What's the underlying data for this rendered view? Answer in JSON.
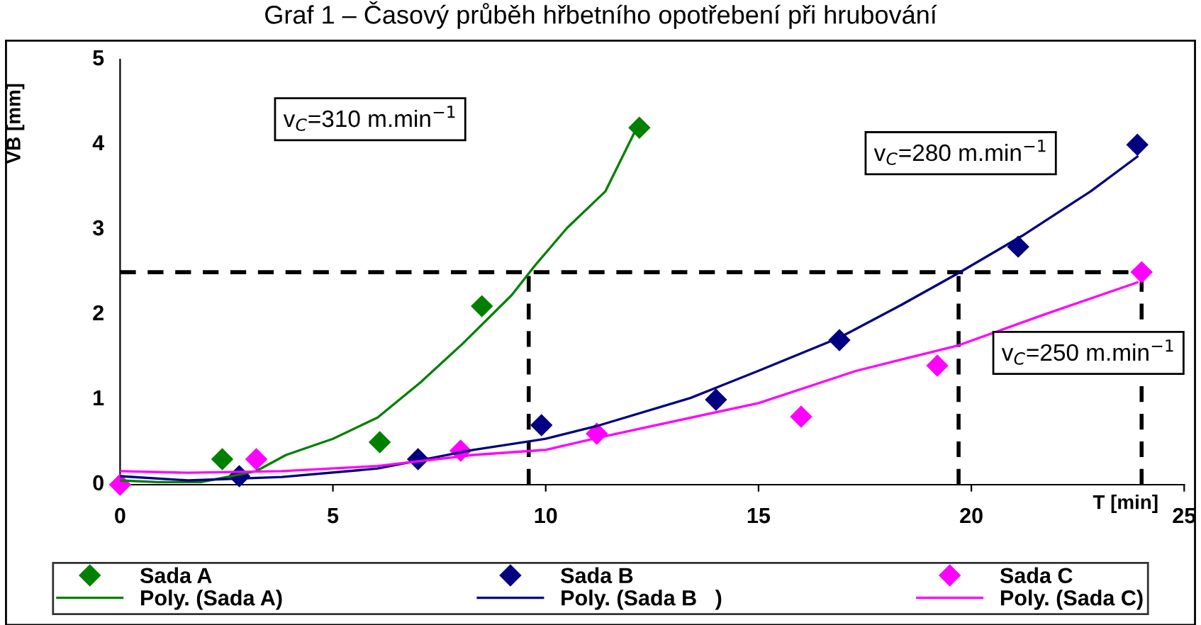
{
  "chart_data": {
    "type": "scatter",
    "title": "Graf 1 – Časový průběh hřbetního opotřebení při hrubování",
    "xlabel": "T [min]",
    "ylabel": "VB [mm]",
    "xlim": [
      0,
      25
    ],
    "xticks": [
      0,
      5,
      10,
      15,
      20,
      25
    ],
    "ylim": [
      0,
      5
    ],
    "yticks": [
      0,
      1,
      2,
      3,
      4,
      5
    ],
    "grid": false,
    "legend": "bottom",
    "marker": "diamond",
    "series": [
      {
        "name": "Sada A",
        "color": "#008000",
        "x": [
          2.4,
          6.1,
          8.5,
          12.2
        ],
        "values": [
          0.3,
          0.5,
          2.1,
          4.2
        ]
      },
      {
        "name": "Poly. (Sada A)",
        "type": "line",
        "marker": "none",
        "line_style": "solid",
        "color": "#008000",
        "x": [
          0,
          0.9,
          1.9,
          3.2,
          3.9,
          5,
          6.05,
          7.05,
          8.05,
          9.2,
          9.75,
          10.5,
          11.4,
          12.1
        ],
        "values": [
          0.05,
          0.03,
          0.03,
          0.16,
          0.35,
          0.54,
          0.79,
          1.2,
          1.66,
          2.23,
          2.58,
          3.02,
          3.45,
          4.16
        ]
      },
      {
        "name": "Sada B",
        "color": "#000080",
        "x": [
          2.8,
          7,
          9.9,
          14,
          16.9,
          21.1,
          23.9
        ],
        "values": [
          0.1,
          0.3,
          0.7,
          1,
          1.7,
          2.8,
          4
        ]
      },
      {
        "name": "Poly. (Sada B   )",
        "type": "line",
        "marker": "none",
        "line_style": "solid",
        "color": "#000080",
        "x": [
          0,
          1.6,
          3.8,
          6.05,
          8.3,
          10,
          11.2,
          13.4,
          15,
          16.9,
          18.3,
          19.7,
          21.2,
          22.8,
          23.9
        ],
        "values": [
          0.1,
          0.05,
          0.09,
          0.19,
          0.41,
          0.54,
          0.69,
          1.02,
          1.34,
          1.73,
          2.1,
          2.49,
          2.93,
          3.45,
          3.86
        ]
      },
      {
        "name": "Sada C",
        "color": "#ff00ff",
        "x": [
          0,
          3.2,
          8,
          11.2,
          16,
          19.2,
          24
        ],
        "values": [
          0,
          0.3,
          0.4,
          0.6,
          0.8,
          1.4,
          2.5
        ]
      },
      {
        "name": "Poly. (Sada C)",
        "type": "line",
        "marker": "none",
        "line_style": "solid",
        "color": "#ff00ff",
        "x": [
          0,
          1.6,
          3.8,
          6.05,
          8.3,
          10,
          11.2,
          15,
          17.3,
          19.7,
          21.7,
          23.9
        ],
        "values": [
          0.16,
          0.14,
          0.16,
          0.22,
          0.35,
          0.41,
          0.55,
          0.96,
          1.34,
          1.64,
          2.0,
          2.38
        ]
      }
    ],
    "ref_lines": [
      {
        "axis": "y",
        "value": 2.5,
        "color": "#000000",
        "line_style": "dashed"
      },
      {
        "axis": "x",
        "value": 9.6,
        "color": "#000000",
        "line_style": "dashed"
      },
      {
        "axis": "x",
        "value": 19.7,
        "color": "#000000",
        "line_style": "dashed"
      },
      {
        "axis": "x",
        "value": 24,
        "color": "#000000",
        "line_style": "dashed"
      }
    ],
    "annotations": [
      "v$_{C}$=310 m.min$^{−1}$",
      "v$_{C}$=280 m.min$^{−1}$",
      "v$_{C}$=250 m.min$^{−1}$"
    ]
  }
}
